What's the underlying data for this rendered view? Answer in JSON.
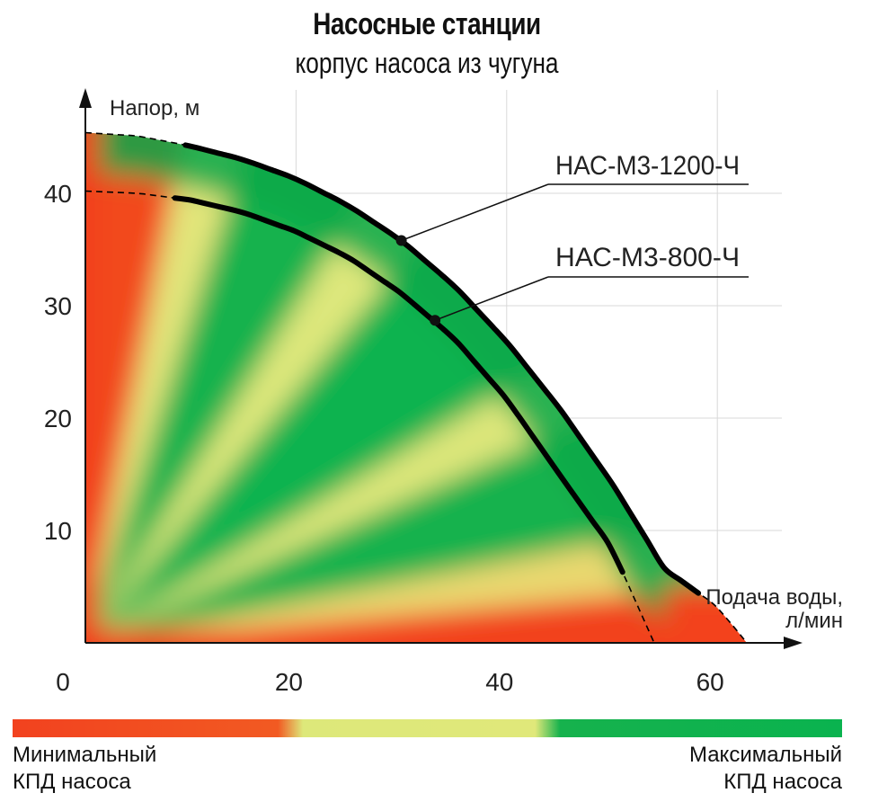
{
  "title": "Насосные станции",
  "subtitle": "корпус насоса из чугуна",
  "chart_data": {
    "type": "line",
    "ylabel": "Напор, м",
    "xlabel_line1": "Подача воды,",
    "xlabel_line2": "л/мин",
    "xlim": [
      0,
      66
    ],
    "ylim": [
      0,
      47
    ],
    "x_ticks": [
      "0",
      "20",
      "40",
      "60"
    ],
    "y_ticks": [
      "10",
      "20",
      "30",
      "40"
    ],
    "grid": true,
    "series": [
      {
        "name": "НАС-М3-1200-Ч",
        "color": "#000000",
        "solid_x": [
          9.5,
          15,
          20,
          25,
          30,
          35,
          40,
          45,
          50,
          55,
          58.2
        ],
        "solid_y": [
          44.2,
          43.2,
          41.6,
          39.3,
          35.8,
          31.6,
          26.4,
          20.2,
          13.5,
          7.8,
          8.3
        ],
        "full_x": [
          0,
          5,
          10,
          15,
          20,
          25,
          30,
          35,
          40,
          45,
          50,
          55,
          60,
          62.8
        ],
        "full_y": [
          45.4,
          45.1,
          44.2,
          43.0,
          41.3,
          38.9,
          35.8,
          31.8,
          26.8,
          20.9,
          14.2,
          6.6,
          3.2,
          0
        ]
      },
      {
        "name": "НАС-М3-800-Ч",
        "color": "#000000",
        "full_x": [
          0,
          5,
          10,
          15,
          20,
          25,
          30,
          35,
          40,
          45,
          50,
          54
        ],
        "full_y": [
          40.2,
          40.0,
          39.4,
          38.3,
          36.6,
          34.3,
          31.1,
          27.1,
          21.7,
          15.0,
          8.4,
          0
        ]
      }
    ],
    "solid_ranges": [
      [
        9.5,
        58.2
      ],
      [
        8.5,
        51
      ]
    ],
    "labels": [
      {
        "text": "НАС-М3-1200-Ч",
        "series": 0,
        "marker_x": 30,
        "marker_y": 35.8
      },
      {
        "text": "НАС-М3-800-Ч",
        "series": 1,
        "marker_x": 33.2,
        "marker_y": 28.7
      }
    ]
  },
  "scale": {
    "left_line1": "Минимальный",
    "left_line2": "КПД насоса",
    "right_line1": "Максимальный",
    "right_line2": "КПД насоса"
  }
}
